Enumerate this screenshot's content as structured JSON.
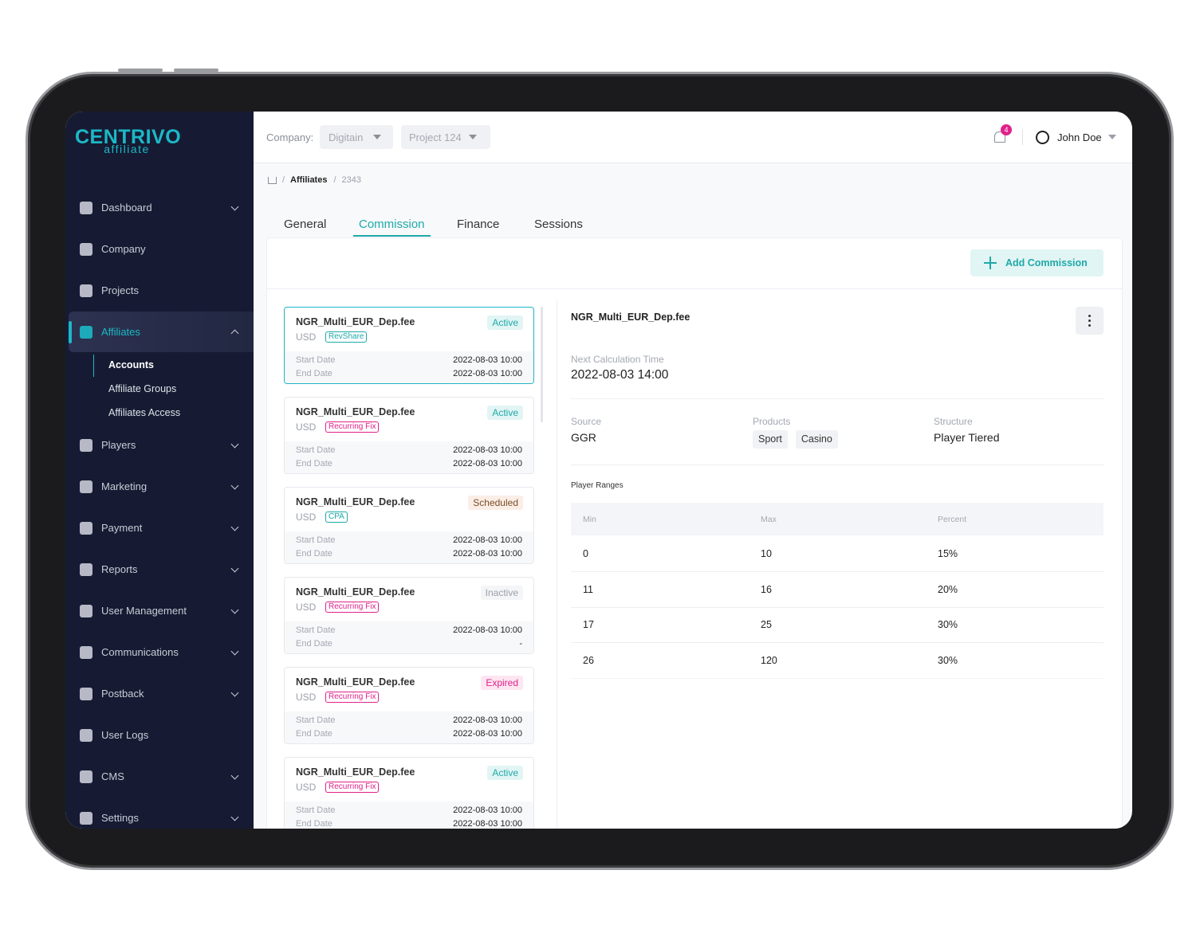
{
  "logo": {
    "name": "CENTRIVO",
    "sub": "affiliate"
  },
  "sidebar": {
    "items": [
      {
        "label": "Dashboard",
        "expandable": true
      },
      {
        "label": "Company",
        "expandable": false
      },
      {
        "label": "Projects",
        "expandable": false
      },
      {
        "label": "Affiliates",
        "expandable": true,
        "active": true
      },
      {
        "label": "Players",
        "expandable": true
      },
      {
        "label": "Marketing",
        "expandable": true
      },
      {
        "label": "Payment",
        "expandable": true
      },
      {
        "label": "Reports",
        "expandable": true
      },
      {
        "label": "User Management",
        "expandable": true
      },
      {
        "label": "Communications",
        "expandable": true
      },
      {
        "label": "Postback",
        "expandable": true
      },
      {
        "label": "User Logs",
        "expandable": false
      },
      {
        "label": "CMS",
        "expandable": true
      },
      {
        "label": "Settings",
        "expandable": true
      }
    ],
    "subitems": [
      "Accounts",
      "Affiliate Groups",
      "Affiliates Access"
    ]
  },
  "header": {
    "company_label": "Company:",
    "company": "Digitain",
    "project": "Project 124",
    "notifications": "4",
    "user": "John Doe"
  },
  "breadcrumb": {
    "separator": "/",
    "items": [
      "Affiliates",
      "2343"
    ]
  },
  "tabs": [
    "General",
    "Commission",
    "Finance",
    "Sessions"
  ],
  "add_button": "Add Commission",
  "commissions": [
    {
      "name": "NGR_Multi_EUR_Dep.fee",
      "currency": "USD",
      "type": "RevShare",
      "type_color": "#1fa9a9",
      "status": "Active",
      "status_color": "#1fa9a9",
      "status_bg": "#e1f5f4",
      "start_label": "Start Date",
      "start": "2022-08-03 10:00",
      "end_label": "End Date",
      "end": "2022-08-03 10:00"
    },
    {
      "name": "NGR_Multi_EUR_Dep.fee",
      "currency": "USD",
      "type": "Recurring Fix",
      "type_color": "#e0218a",
      "status": "Active",
      "status_color": "#1fa9a9",
      "status_bg": "#e1f5f4",
      "start_label": "Start Date",
      "start": "2022-08-03 10:00",
      "end_label": "End Date",
      "end": "2022-08-03 10:00"
    },
    {
      "name": "NGR_Multi_EUR_Dep.fee",
      "currency": "USD",
      "type": "CPA",
      "type_color": "#1fa9a9",
      "status": "Scheduled",
      "status_color": "#7a4e27",
      "status_bg": "#fbeee6",
      "start_label": "Start Date",
      "start": "2022-08-03 10:00",
      "end_label": "End Date",
      "end": "2022-08-03 10:00"
    },
    {
      "name": "NGR_Multi_EUR_Dep.fee",
      "currency": "USD",
      "type": "Recurring Fix",
      "type_color": "#e0218a",
      "status": "Inactive",
      "status_color": "#9aa0aa",
      "status_bg": "#f4f5f7",
      "start_label": "Start Date",
      "start": "2022-08-03 10:00",
      "end_label": "End Date",
      "end": "-"
    },
    {
      "name": "NGR_Multi_EUR_Dep.fee",
      "currency": "USD",
      "type": "Recurring Fix",
      "type_color": "#e0218a",
      "status": "Expired",
      "status_color": "#e0218a",
      "status_bg": "#fde6f1",
      "start_label": "Start Date",
      "start": "2022-08-03 10:00",
      "end_label": "End Date",
      "end": "2022-08-03 10:00"
    },
    {
      "name": "NGR_Multi_EUR_Dep.fee",
      "currency": "USD",
      "type": "Recurring Fix",
      "type_color": "#e0218a",
      "status": "Active",
      "status_color": "#1fa9a9",
      "status_bg": "#e1f5f4",
      "start_label": "Start Date",
      "start": "2022-08-03 10:00",
      "end_label": "End Date",
      "end": "2022-08-03 10:00"
    }
  ],
  "detail": {
    "title": "NGR_Multi_EUR_Dep.fee",
    "next_label": "Next Calculation Time",
    "next_value": "2022-08-03 14:00",
    "source_label": "Source",
    "source": "GGR",
    "products_label": "Products",
    "products": [
      "Sport",
      "Casino"
    ],
    "structure_label": "Structure",
    "structure": "Player Tiered",
    "ranges_label": "Player Ranges",
    "columns": [
      "Min",
      "Max",
      "Percent"
    ],
    "rows": [
      [
        "0",
        "10",
        "15%"
      ],
      [
        "11",
        "16",
        "20%"
      ],
      [
        "17",
        "25",
        "30%"
      ],
      [
        "26",
        "120",
        "30%"
      ]
    ]
  }
}
